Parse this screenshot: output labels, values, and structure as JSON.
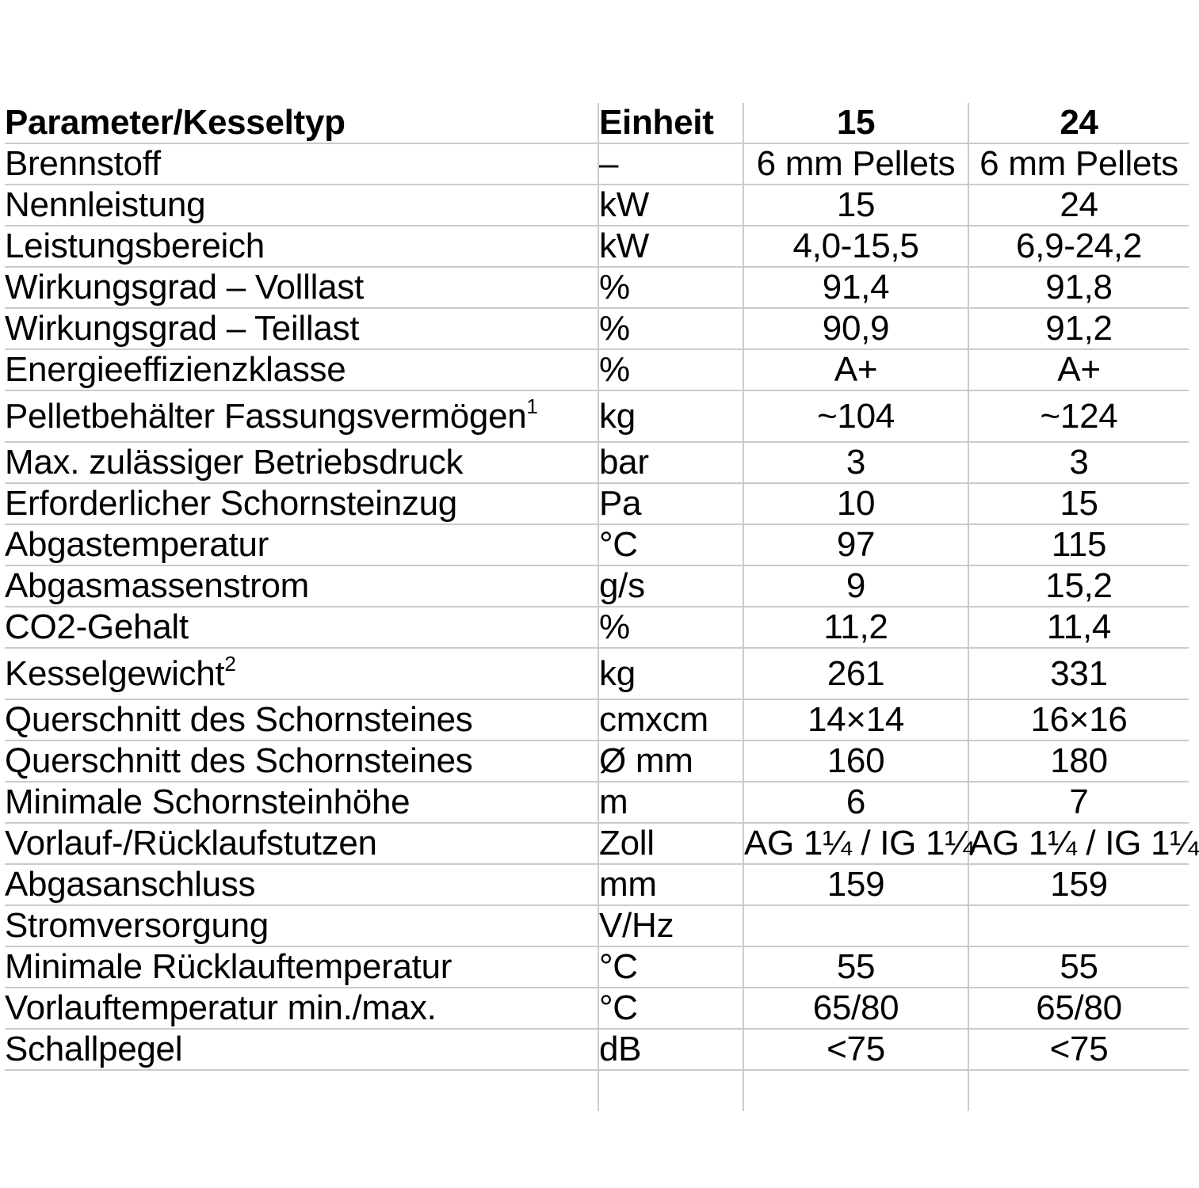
{
  "table": {
    "columns": {
      "parameter": "Parameter/Kesseltyp",
      "unit": "Einheit",
      "model15": "15",
      "model24": "24"
    },
    "rows": [
      {
        "label": "Brennstoff",
        "sup": "",
        "unit": "–",
        "v15": "6 mm Pellets",
        "v24": "6 mm Pellets",
        "tall": false
      },
      {
        "label": "Nennleistung",
        "sup": "",
        "unit": "kW",
        "v15": "15",
        "v24": "24",
        "tall": false
      },
      {
        "label": "Leistungsbereich",
        "sup": "",
        "unit": "kW",
        "v15": "4,0-15,5",
        "v24": "6,9-24,2",
        "tall": false
      },
      {
        "label": "Wirkungsgrad – Volllast",
        "sup": "",
        "unit": "%",
        "v15": "91,4",
        "v24": "91,8",
        "tall": false
      },
      {
        "label": "Wirkungsgrad – Teillast",
        "sup": "",
        "unit": "%",
        "v15": "90,9",
        "v24": "91,2",
        "tall": false
      },
      {
        "label": "Energieeffizienzklasse",
        "sup": "",
        "unit": "%",
        "v15": "A+",
        "v24": "A+",
        "tall": false
      },
      {
        "label": "Pelletbehälter Fassungsvermögen",
        "sup": "1",
        "unit": "kg",
        "v15": "~104",
        "v24": "~124",
        "tall": true
      },
      {
        "label": "Max. zulässiger Betriebsdruck",
        "sup": "",
        "unit": "bar",
        "v15": "3",
        "v24": "3",
        "tall": false
      },
      {
        "label": "Erforderlicher Schornsteinzug",
        "sup": "",
        "unit": "Pa",
        "v15": "10",
        "v24": "15",
        "tall": false
      },
      {
        "label": "Abgastemperatur",
        "sup": "",
        "unit": "°C",
        "v15": "97",
        "v24": "115",
        "tall": false
      },
      {
        "label": "Abgasmassenstrom",
        "sup": "",
        "unit": "g/s",
        "v15": "9",
        "v24": "15,2",
        "tall": false
      },
      {
        "label": "CO2-Gehalt",
        "sup": "",
        "unit": "%",
        "v15": "11,2",
        "v24": "11,4",
        "tall": false
      },
      {
        "label": "Kesselgewicht",
        "sup": "2",
        "unit": "kg",
        "v15": "261",
        "v24": "331",
        "tall": true
      },
      {
        "label": "Querschnitt des Schornsteines",
        "sup": "",
        "unit": "cmxcm",
        "v15": "14×14",
        "v24": "16×16",
        "tall": false
      },
      {
        "label": "Querschnitt des Schornsteines",
        "sup": "",
        "unit": "Ø mm",
        "v15": "160",
        "v24": "180",
        "tall": false
      },
      {
        "label": "Minimale Schornsteinhöhe",
        "sup": "",
        "unit": "m",
        "v15": "6",
        "v24": "7",
        "tall": false
      },
      {
        "label": "Vorlauf-/Rücklaufstutzen",
        "sup": "",
        "unit": "Zoll",
        "v15": "AG 1¼ / IG 1¼",
        "v24": "AG 1¼ / IG 1¼",
        "tall": false
      },
      {
        "label": "Abgasanschluss",
        "sup": "",
        "unit": "mm",
        "v15": "159",
        "v24": "159",
        "tall": false
      },
      {
        "label": "Stromversorgung",
        "sup": "",
        "unit": "V/Hz",
        "v15": "",
        "v24": "",
        "tall": false
      },
      {
        "label": "Minimale Rücklauftemperatur",
        "sup": "",
        "unit": "°C",
        "v15": "55",
        "v24": "55",
        "tall": false
      },
      {
        "label": "Vorlauftemperatur min./max.",
        "sup": "",
        "unit": "°C",
        "v15": "65/80",
        "v24": "65/80",
        "tall": false
      },
      {
        "label": "Schallpegel",
        "sup": "",
        "unit": "dB",
        "v15": "<75",
        "v24": "<75",
        "tall": false
      }
    ]
  },
  "colors": {
    "grid": "#cbcbcb",
    "text": "#000000",
    "background": "#ffffff"
  }
}
